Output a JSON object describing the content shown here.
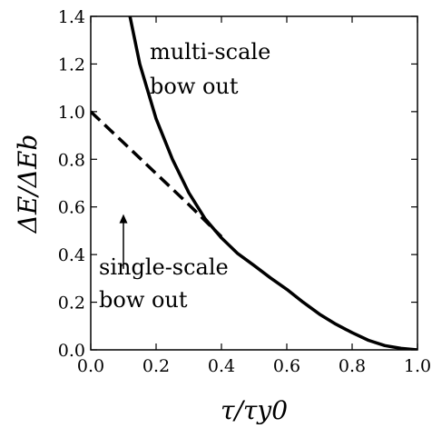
{
  "chart_data": {
    "type": "line",
    "xlabel": "τ/τy0",
    "ylabel": "ΔE/ΔEb",
    "xlim": [
      0.0,
      1.0
    ],
    "ylim": [
      0.0,
      1.4
    ],
    "x_ticks": [
      "0.0",
      "0.2",
      "0.4",
      "0.6",
      "0.8",
      "1.0"
    ],
    "y_ticks": [
      "0.0",
      "0.2",
      "0.4",
      "0.6",
      "0.8",
      "1.0",
      "1.2",
      "1.4"
    ],
    "grid": false,
    "series": [
      {
        "style": "solid",
        "color": "#000000",
        "x": [
          0.12,
          0.15,
          0.2,
          0.25,
          0.3,
          0.35,
          0.4,
          0.45,
          0.5,
          0.55,
          0.6,
          0.65,
          0.7,
          0.75,
          0.8,
          0.85,
          0.9,
          0.95,
          1.0
        ],
        "y": [
          1.4,
          1.2,
          0.97,
          0.8,
          0.66,
          0.55,
          0.47,
          0.404,
          0.354,
          0.302,
          0.254,
          0.2,
          0.15,
          0.108,
          0.072,
          0.04,
          0.018,
          0.006,
          0.0
        ]
      },
      {
        "style": "dashed",
        "color": "#000000",
        "x": [
          0.0,
          0.1,
          0.2,
          0.3,
          0.4
        ],
        "y": [
          1.0,
          0.87,
          0.74,
          0.61,
          0.475
        ]
      }
    ],
    "annotations": [
      {
        "lines": [
          "multi-scale",
          "bow out"
        ]
      },
      {
        "lines": [
          "single-scale",
          "bow out"
        ],
        "arrow_from": [
          0.1,
          0.34
        ],
        "arrow_to": [
          0.1,
          0.57
        ]
      }
    ]
  }
}
